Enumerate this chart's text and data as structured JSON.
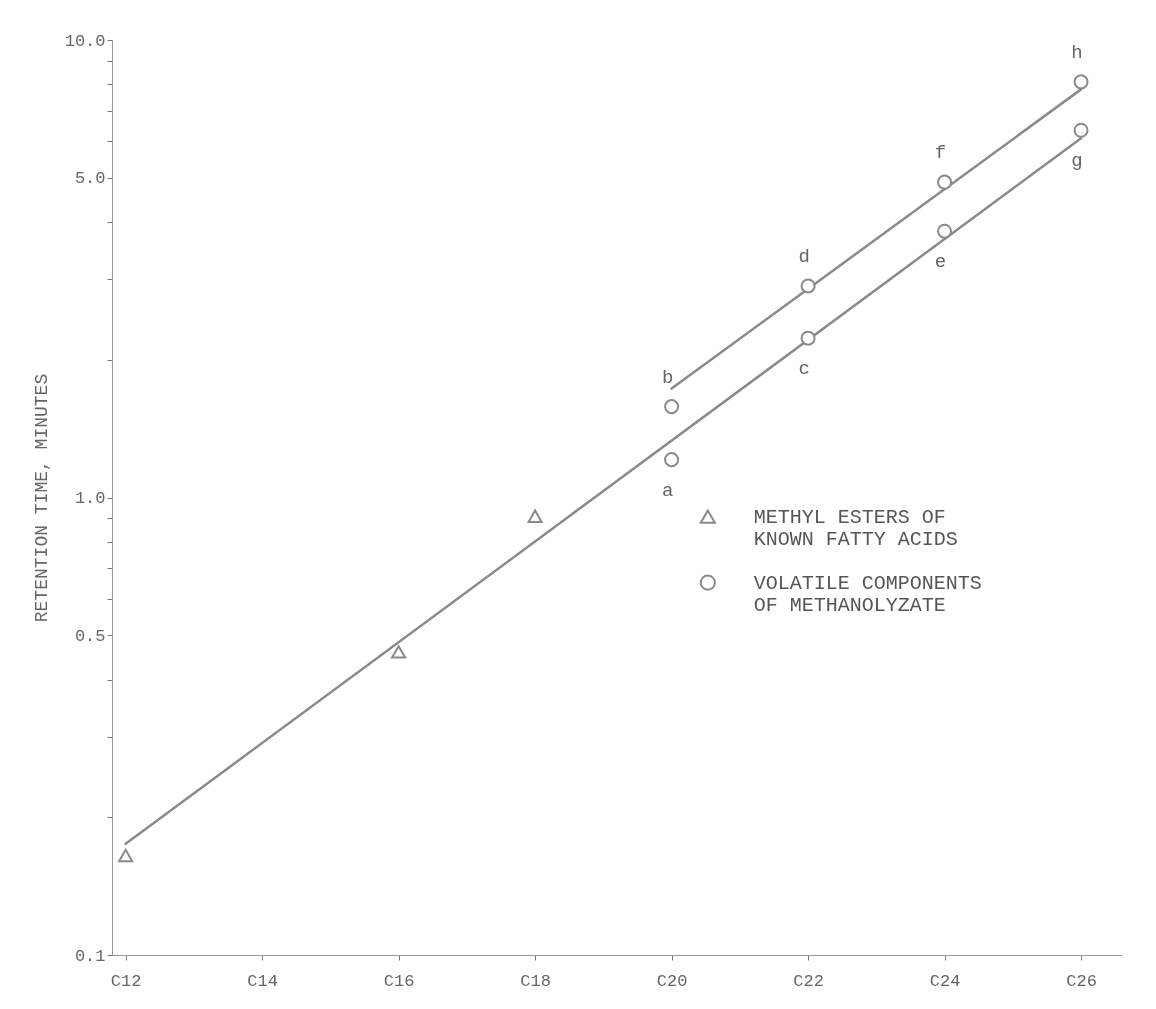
{
  "chart_data": {
    "type": "scatter",
    "ylabel": "RETENTION TIME, MINUTES",
    "categories": [
      "C12",
      "C14",
      "C16",
      "C18",
      "C20",
      "C22",
      "C24",
      "C26"
    ],
    "ylim": [
      0.1,
      10
    ],
    "log": "y",
    "grid": false,
    "legend": "right",
    "yticks": [
      {
        "value": 0.1,
        "label": "0.1"
      },
      {
        "value": 0.2,
        "label": null
      },
      {
        "value": 0.3,
        "label": null
      },
      {
        "value": 0.4,
        "label": null
      },
      {
        "value": 0.5,
        "label": "0.5"
      },
      {
        "value": 0.6,
        "label": null
      },
      {
        "value": 0.7,
        "label": null
      },
      {
        "value": 0.8,
        "label": null
      },
      {
        "value": 0.9,
        "label": null
      },
      {
        "value": 1,
        "label": "1.0"
      },
      {
        "value": 2,
        "label": null
      },
      {
        "value": 3,
        "label": null
      },
      {
        "value": 4,
        "label": null
      },
      {
        "value": 5,
        "label": "5.0"
      },
      {
        "value": 6,
        "label": null
      },
      {
        "value": 7,
        "label": null
      },
      {
        "value": 8,
        "label": null
      },
      {
        "value": 9,
        "label": null
      },
      {
        "value": 10,
        "label": "10.0"
      }
    ],
    "series": [
      {
        "type": "line",
        "color": "#8a8a8a",
        "line_style": "solid",
        "marker": "none",
        "x": [
          "C12",
          "C26"
        ],
        "values": [
          0.175,
          6.1
        ]
      },
      {
        "type": "line",
        "color": "#8a8a8a",
        "line_style": "solid",
        "marker": "none",
        "x": [
          "C20",
          "C26"
        ],
        "values": [
          1.73,
          7.8
        ]
      },
      {
        "type": "scatter",
        "name": "METHYL ESTERS OF\nKNOWN FATTY ACIDS",
        "color": "#8a8a8a",
        "marker": "triangle",
        "x": [
          "C12",
          "C16",
          "C18"
        ],
        "values": [
          0.165,
          0.46,
          0.91
        ]
      },
      {
        "type": "scatter",
        "name": "VOLATILE COMPONENTS\nOF METHANOLYZATE",
        "color": "#8a8a8a",
        "marker": "circle",
        "x": [
          "C20",
          "C20",
          "C22",
          "C22",
          "C24",
          "C24",
          "C26",
          "C26"
        ],
        "values": [
          1.21,
          1.58,
          2.23,
          2.9,
          3.82,
          4.89,
          6.35,
          8.1
        ]
      }
    ],
    "annotations": [
      {
        "text": "a",
        "x": "C20",
        "y": 1.21
      },
      {
        "text": "b",
        "x": "C20",
        "y": 1.58
      },
      {
        "text": "c",
        "x": "C22",
        "y": 2.23
      },
      {
        "text": "d",
        "x": "C22",
        "y": 2.9
      },
      {
        "text": "e",
        "x": "C24",
        "y": 3.82
      },
      {
        "text": "f",
        "x": "C24",
        "y": 4.89
      },
      {
        "text": "g",
        "x": "C26",
        "y": 6.35
      },
      {
        "text": "h",
        "x": "C26",
        "y": 8.1
      }
    ]
  }
}
